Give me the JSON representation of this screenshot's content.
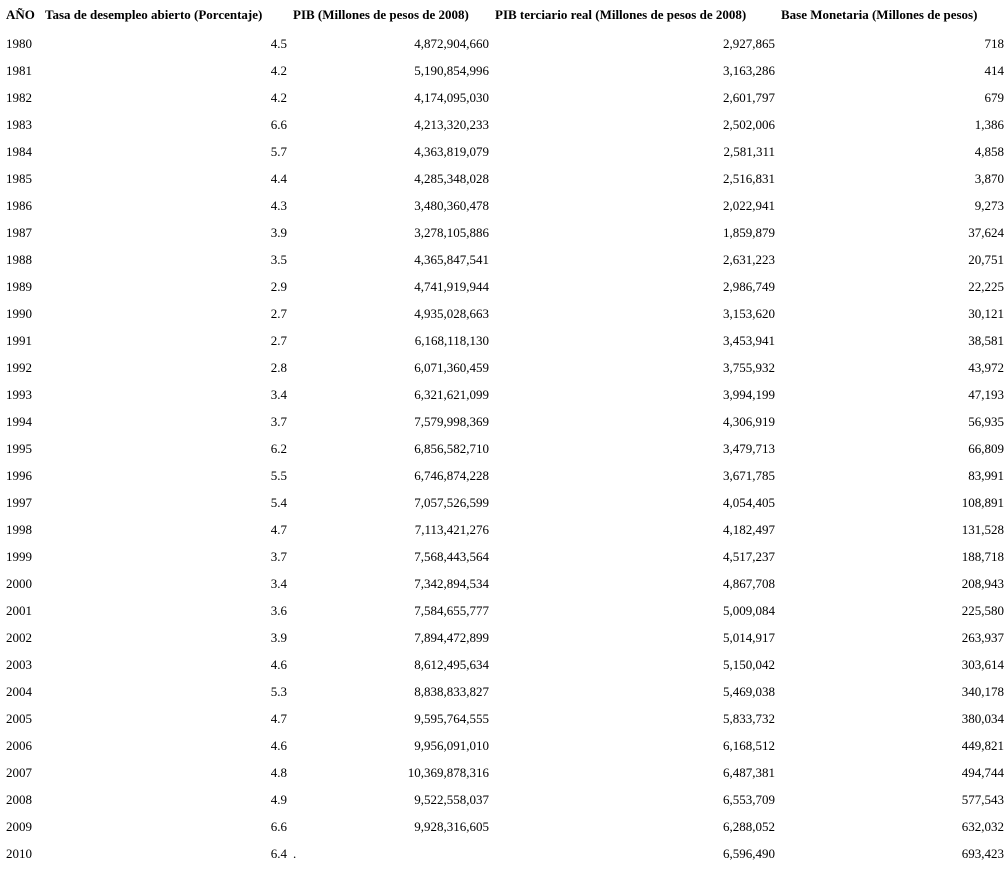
{
  "table": {
    "header": [
      "AÑO",
      "Tasa de desempleo abierto (Porcentaje)",
      "PIB (Millones de pesos de 2008)",
      "PIB terciario real (Millones de pesos de 2008)",
      "Base Monetaria (Millones de pesos)"
    ],
    "rows": [
      [
        "1980",
        "4.5",
        "4,872,904,660",
        "2,927,865",
        "718"
      ],
      [
        "1981",
        "4.2",
        "5,190,854,996",
        "3,163,286",
        "414"
      ],
      [
        "1982",
        "4.2",
        "4,174,095,030",
        "2,601,797",
        "679"
      ],
      [
        "1983",
        "6.6",
        "4,213,320,233",
        "2,502,006",
        "1,386"
      ],
      [
        "1984",
        "5.7",
        "4,363,819,079",
        "2,581,311",
        "4,858"
      ],
      [
        "1985",
        "4.4",
        "4,285,348,028",
        "2,516,831",
        "3,870"
      ],
      [
        "1986",
        "4.3",
        "3,480,360,478",
        "2,022,941",
        "9,273"
      ],
      [
        "1987",
        "3.9",
        "3,278,105,886",
        "1,859,879",
        "37,624"
      ],
      [
        "1988",
        "3.5",
        "4,365,847,541",
        "2,631,223",
        "20,751"
      ],
      [
        "1989",
        "2.9",
        "4,741,919,944",
        "2,986,749",
        "22,225"
      ],
      [
        "1990",
        "2.7",
        "4,935,028,663",
        "3,153,620",
        "30,121"
      ],
      [
        "1991",
        "2.7",
        "6,168,118,130",
        "3,453,941",
        "38,581"
      ],
      [
        "1992",
        "2.8",
        "6,071,360,459",
        "3,755,932",
        "43,972"
      ],
      [
        "1993",
        "3.4",
        "6,321,621,099",
        "3,994,199",
        "47,193"
      ],
      [
        "1994",
        "3.7",
        "7,579,998,369",
        "4,306,919",
        "56,935"
      ],
      [
        "1995",
        "6.2",
        "6,856,582,710",
        "3,479,713",
        "66,809"
      ],
      [
        "1996",
        "5.5",
        "6,746,874,228",
        "3,671,785",
        "83,991"
      ],
      [
        "1997",
        "5.4",
        "7,057,526,599",
        "4,054,405",
        "108,891"
      ],
      [
        "1998",
        "4.7",
        "7,113,421,276",
        "4,182,497",
        "131,528"
      ],
      [
        "1999",
        "3.7",
        "7,568,443,564",
        "4,517,237",
        "188,718"
      ],
      [
        "2000",
        "3.4",
        "7,342,894,534",
        "4,867,708",
        "208,943"
      ],
      [
        "2001",
        "3.6",
        "7,584,655,777",
        "5,009,084",
        "225,580"
      ],
      [
        "2002",
        "3.9",
        "7,894,472,899",
        "5,014,917",
        "263,937"
      ],
      [
        "2003",
        "4.6",
        "8,612,495,634",
        "5,150,042",
        "303,614"
      ],
      [
        "2004",
        "5.3",
        "8,838,833,827",
        "5,469,038",
        "340,178"
      ],
      [
        "2005",
        "4.7",
        "9,595,764,555",
        "5,833,732",
        "380,034"
      ],
      [
        "2006",
        "4.6",
        "9,956,091,010",
        "6,168,512",
        "449,821"
      ],
      [
        "2007",
        "4.8",
        "10,369,878,316",
        "6,487,381",
        "494,744"
      ],
      [
        "2008",
        "4.9",
        "9,522,558,037",
        "6,553,709",
        "577,543"
      ],
      [
        "2009",
        "6.6",
        "9,928,316,605",
        "6,288,052",
        "632,032"
      ],
      [
        "2010",
        "6.4",
        ".",
        "6,596,490",
        "693,423"
      ]
    ]
  }
}
